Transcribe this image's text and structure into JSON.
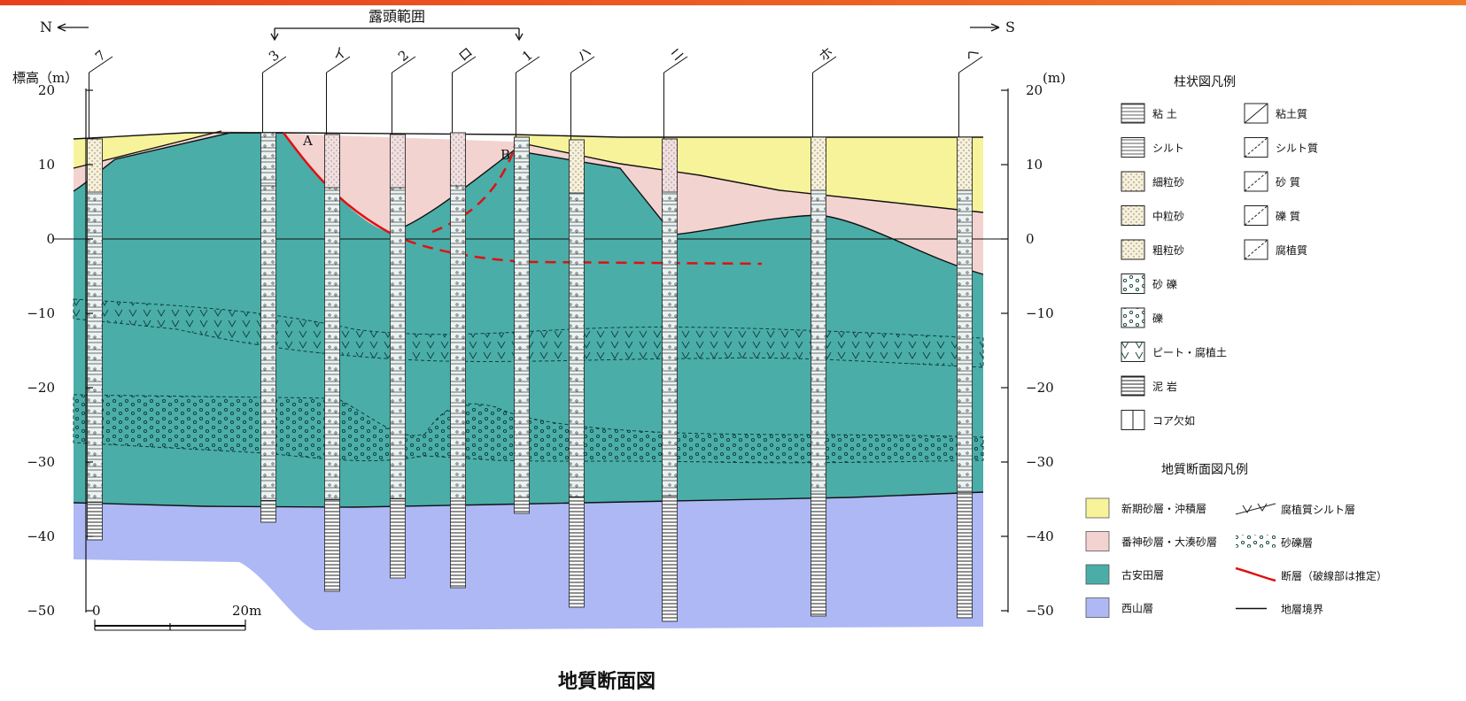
{
  "top_label": "露頭範囲",
  "north_label": "N",
  "south_label": "S",
  "y_axis_title_left": "標高（m）",
  "y_axis_title_right": "(m)",
  "y_ticks": [
    "20",
    "10",
    "0",
    "−10",
    "−20",
    "−30",
    "−40",
    "−50"
  ],
  "y_values": [
    20,
    10,
    0,
    -10,
    -20,
    -30,
    -40,
    -50
  ],
  "boreholes": [
    "7",
    "3",
    "イ",
    "2",
    "ロ",
    "1",
    "ハ",
    "ニ",
    "ホ",
    "ヘ"
  ],
  "fault_label_a": "A",
  "fault_label_b": "B",
  "scale_label_start": "0",
  "scale_label_end": "20m",
  "caption": "地質断面図",
  "legend_column_title": "柱状図凡例",
  "legend_column_left": [
    "粘 土",
    "シルト",
    "細粒砂",
    "中粒砂",
    "粗粒砂",
    "砂 礫",
    "礫",
    "ピート・腐植土",
    "泥 岩",
    "コア欠如"
  ],
  "legend_column_right": [
    "粘土質",
    "シルト質",
    "砂 質",
    "礫 質",
    "腐植質"
  ],
  "legend_section_title": "地質断面図凡例",
  "legend_section": [
    {
      "label": "新期砂層・沖積層",
      "color": "#f7f39a"
    },
    {
      "label": "番神砂層・大湊砂層",
      "color": "#f3d3d0"
    },
    {
      "label": "古安田層",
      "color": "#4aada8"
    },
    {
      "label": "西山層",
      "color": "#aeb8f5"
    }
  ],
  "legend_symbols": [
    "腐植質シルト層",
    "砂礫層",
    "断層（破線部は推定）",
    "地層境界"
  ],
  "colors": {
    "new_sand": "#f7f39a",
    "banjin_sand": "#f3d3d0",
    "koyasuda": "#4aada8",
    "nishiyama": "#aeb8f5",
    "fault": "#e01010",
    "boundary": "#111111"
  }
}
